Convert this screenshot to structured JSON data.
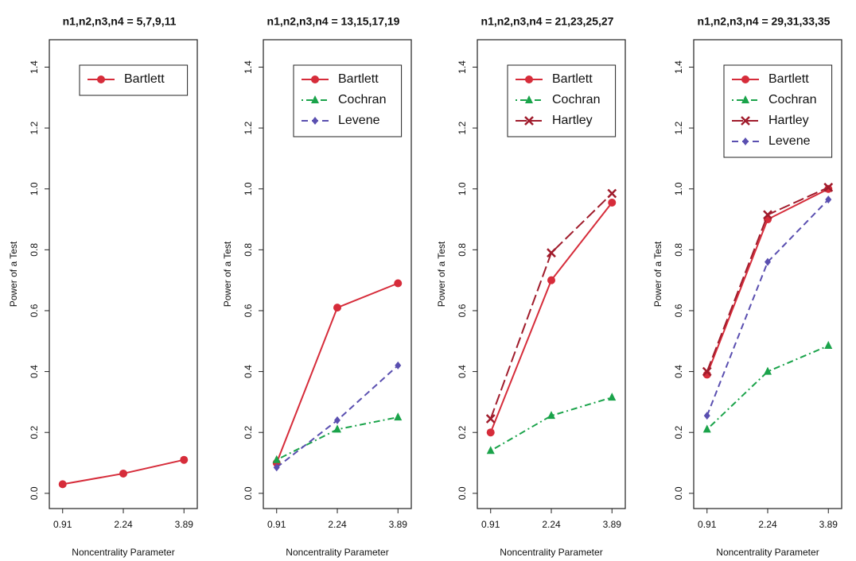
{
  "chart_data": [
    {
      "type": "line",
      "title": "n1,n2,n3,n4 = 5,7,9,11",
      "x_label": "Noncentrality Parameter",
      "y_label": "Power of a Test",
      "categories": [
        "0.91",
        "2.24",
        "3.89"
      ],
      "series": [
        {
          "name": "Bartlett",
          "color": "#d62c3a",
          "marker": "circle",
          "linestyle": "solid",
          "values": [
            0.03,
            0.065,
            0.11
          ]
        }
      ],
      "ylim": [
        -0.05,
        1.49
      ],
      "yticks": [
        {
          "value": 0,
          "label": "0.0"
        },
        0.2,
        0.4,
        0.6,
        0.8,
        {
          "value": 1,
          "label": "1.0"
        },
        1.2,
        1.4
      ]
    },
    {
      "type": "line",
      "title": "n1,n2,n3,n4 = 13,15,17,19",
      "x_label": "Noncentrality Parameter",
      "y_label": "Power of a Test",
      "categories": [
        "0.91",
        "2.24",
        "3.89"
      ],
      "series": [
        {
          "name": "Bartlett",
          "color": "#d62c3a",
          "marker": "circle",
          "linestyle": "solid",
          "values": [
            0.1,
            0.61,
            0.69
          ]
        },
        {
          "name": "Cochran",
          "color": "#1aa34a",
          "marker": "triangle",
          "linestyle": "dashdot",
          "values": [
            0.11,
            0.21,
            0.25
          ]
        },
        {
          "name": "Levene",
          "color": "#5a4fb0",
          "marker": "diamond",
          "linestyle": "dashed",
          "values": [
            0.085,
            0.24,
            0.42
          ]
        }
      ],
      "ylim": [
        -0.05,
        1.49
      ],
      "yticks": [
        {
          "value": 0,
          "label": "0.0"
        },
        0.2,
        0.4,
        0.6,
        0.8,
        {
          "value": 1,
          "label": "1.0"
        },
        1.2,
        1.4
      ]
    },
    {
      "type": "line",
      "title": "n1,n2,n3,n4 = 21,23,25,27",
      "x_label": "Noncentrality Parameter",
      "y_label": "Power of a Test",
      "categories": [
        "0.91",
        "2.24",
        "3.89"
      ],
      "series": [
        {
          "name": "Bartlett",
          "color": "#d62c3a",
          "marker": "circle",
          "linestyle": "solid",
          "values": [
            0.2,
            0.7,
            0.955
          ]
        },
        {
          "name": "Cochran",
          "color": "#1aa34a",
          "marker": "triangle",
          "linestyle": "dashdot",
          "values": [
            0.14,
            0.255,
            0.315
          ]
        },
        {
          "name": "Hartley",
          "color": "#a01c2c",
          "marker": "cross",
          "linestyle": "longdash",
          "values": [
            0.245,
            0.79,
            0.985
          ]
        }
      ],
      "ylim": [
        -0.05,
        1.49
      ],
      "yticks": [
        {
          "value": 0,
          "label": "0.0"
        },
        0.2,
        0.4,
        0.6,
        0.8,
        {
          "value": 1,
          "label": "1.0"
        },
        1.2,
        1.4
      ]
    },
    {
      "type": "line",
      "title": "n1,n2,n3,n4 = 29,31,33,35",
      "x_label": "Noncentrality Parameter",
      "y_label": "Power of a Test",
      "categories": [
        "0.91",
        "2.24",
        "3.89"
      ],
      "series": [
        {
          "name": "Bartlett",
          "color": "#d62c3a",
          "marker": "circle",
          "linestyle": "solid",
          "values": [
            0.39,
            0.9,
            1.0
          ]
        },
        {
          "name": "Cochran",
          "color": "#1aa34a",
          "marker": "triangle",
          "linestyle": "dashdot",
          "values": [
            0.21,
            0.4,
            0.485
          ]
        },
        {
          "name": "Hartley",
          "color": "#a01c2c",
          "marker": "cross",
          "linestyle": "longdash",
          "values": [
            0.4,
            0.915,
            1.005
          ]
        },
        {
          "name": "Levene",
          "color": "#5a4fb0",
          "marker": "diamond",
          "linestyle": "dashed",
          "values": [
            0.255,
            0.76,
            0.965
          ]
        }
      ],
      "ylim": [
        -0.05,
        1.49
      ],
      "yticks": [
        {
          "value": 0,
          "label": "0.0"
        },
        0.2,
        0.4,
        0.6,
        0.8,
        {
          "value": 1,
          "label": "1.0"
        },
        1.2,
        1.4
      ]
    }
  ]
}
